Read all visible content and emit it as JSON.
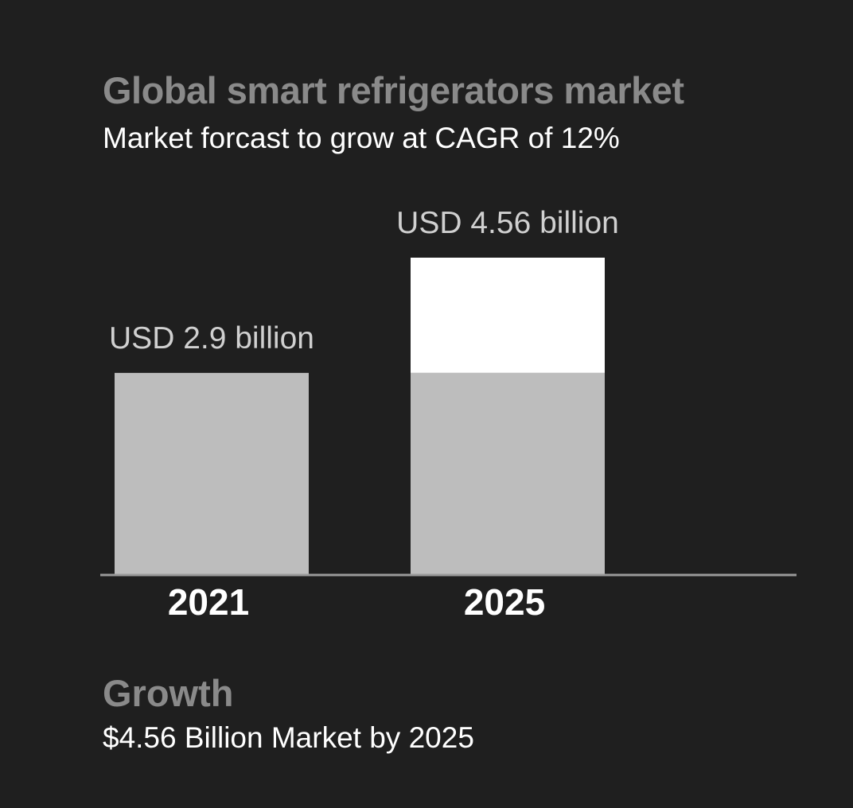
{
  "title": "Global smart refrigerators market",
  "subtitle": "Market forcast to grow at CAGR of 12%",
  "footer": {
    "heading": "Growth",
    "text": "$4.56 Billion Market by 2025"
  },
  "colors": {
    "background": "#1f1f1f",
    "bar_base": "#bdbdbd",
    "bar_growth": "#ffffff",
    "axis": "#9a9a9a",
    "title": "#8a8a8a",
    "text": "#ffffff",
    "value_label": "#d0d0d0"
  },
  "chart_data": {
    "type": "bar",
    "title": "Global smart refrigerators market",
    "subtitle": "Market forcast to grow at CAGR of 12%",
    "categories": [
      "2021",
      "2025"
    ],
    "values": [
      2.9,
      4.56
    ],
    "unit": "USD billion",
    "data_labels": [
      "USD 2.9 billion",
      "USD 4.56 billion"
    ],
    "baseline_value": 2.9,
    "ylim": [
      0,
      4.56
    ],
    "grid": false,
    "legend": "none"
  }
}
